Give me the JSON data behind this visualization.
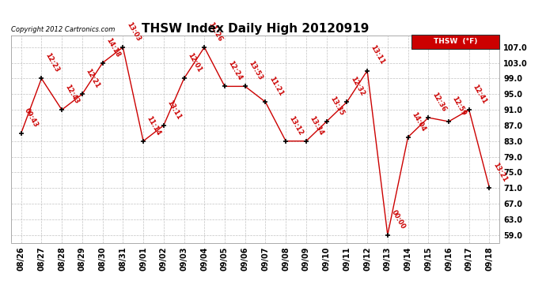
{
  "title": "THSW Index Daily High 20120919",
  "copyright": "Copyright 2012 Cartronics.com",
  "legend_label": "THSW  (°F)",
  "line_color": "#cc0000",
  "bg_color": "#ffffff",
  "grid_color": "#bbbbbb",
  "dates": [
    "08/26",
    "08/27",
    "08/28",
    "08/29",
    "08/30",
    "08/31",
    "09/01",
    "09/02",
    "09/03",
    "09/04",
    "09/05",
    "09/06",
    "09/07",
    "09/08",
    "09/09",
    "09/10",
    "09/11",
    "09/12",
    "09/13",
    "09/14",
    "09/15",
    "09/16",
    "09/17",
    "09/18"
  ],
  "values": [
    85.0,
    99.0,
    91.0,
    95.0,
    103.0,
    107.0,
    83.0,
    87.0,
    99.0,
    107.0,
    97.0,
    97.0,
    93.0,
    83.0,
    83.0,
    88.0,
    93.0,
    101.0,
    59.0,
    84.0,
    89.0,
    88.0,
    91.0,
    71.0
  ],
  "labels": [
    "09:43",
    "12:23",
    "12:43",
    "12:21",
    "14:18",
    "13:03",
    "11:14",
    "13:11",
    "12:01",
    "11:26",
    "12:24",
    "13:53",
    "11:21",
    "13:12",
    "13:34",
    "13:35",
    "12:32",
    "13:11",
    "00:00",
    "14:04",
    "12:36",
    "12:59",
    "12:41",
    "13:21"
  ],
  "ylim_min": 57.0,
  "ylim_max": 110.0,
  "yticks": [
    59.0,
    63.0,
    67.0,
    71.0,
    75.0,
    79.0,
    83.0,
    87.0,
    91.0,
    95.0,
    99.0,
    103.0,
    107.0
  ],
  "title_fontsize": 11,
  "label_fontsize": 6,
  "tick_fontsize": 7,
  "copyright_fontsize": 6,
  "legend_bg": "#cc0000",
  "legend_text_color": "#ffffff"
}
